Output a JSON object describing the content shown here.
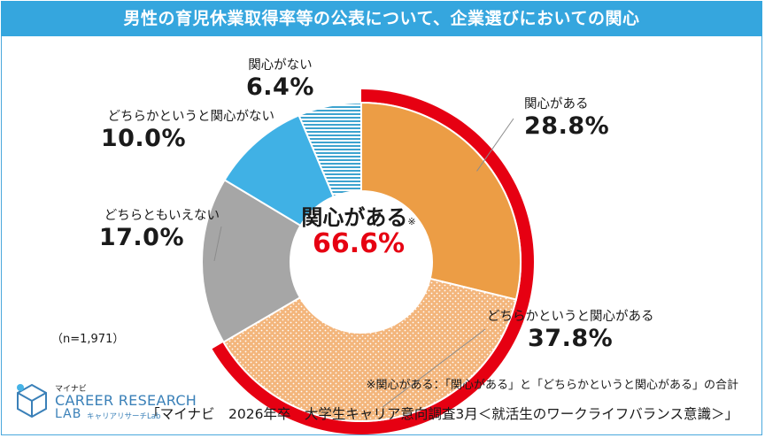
{
  "header": {
    "title": "男性の育児休業取得率等の公表について、企業選びにおいての関心"
  },
  "chart_data": {
    "type": "pie",
    "donut": true,
    "title": "男性の育児休業取得率等の公表について、企業選びにおいての関心",
    "start_angle_deg": 0,
    "direction": "clockwise",
    "slices": [
      {
        "label": "関心がある",
        "value": 28.8,
        "value_label": "28.8%",
        "color": "#ec9d45",
        "pattern": "solid"
      },
      {
        "label": "どちらかというと関心がある",
        "value": 37.8,
        "value_label": "37.8%",
        "color": "#f3b57b",
        "pattern": "dots"
      },
      {
        "label": "どちらともいえない",
        "value": 17.0,
        "value_label": "17.0%",
        "color": "#a6a6a6",
        "pattern": "solid"
      },
      {
        "label": "どちらかというと関心がない",
        "value": 10.0,
        "value_label": "10.0%",
        "color": "#40b1e5",
        "pattern": "solid"
      },
      {
        "label": "関心がない",
        "value": 6.4,
        "value_label": "6.4%",
        "color": "#3da3cf",
        "pattern": "stripes"
      }
    ],
    "highlight": {
      "label": "関心がある",
      "mark": "※",
      "value": 66.6,
      "value_label": "66.6%",
      "color": "#e60012",
      "covers": [
        "関心がある",
        "どちらかというと関心がある"
      ]
    }
  },
  "sample_size": "（n=1,971）",
  "footnote": "※関心がある：「関心がある」と「どちらかというと関心がある」の合計",
  "source": "「マイナビ　2026年卒　大学生キャリア意向調査3月＜就活生のワークライフバランス意識＞」",
  "logo": {
    "small": "マイナビ",
    "main": "CAREER RESEARCH",
    "lab": "LAB",
    "sub": "キャリアリサーチLab"
  }
}
